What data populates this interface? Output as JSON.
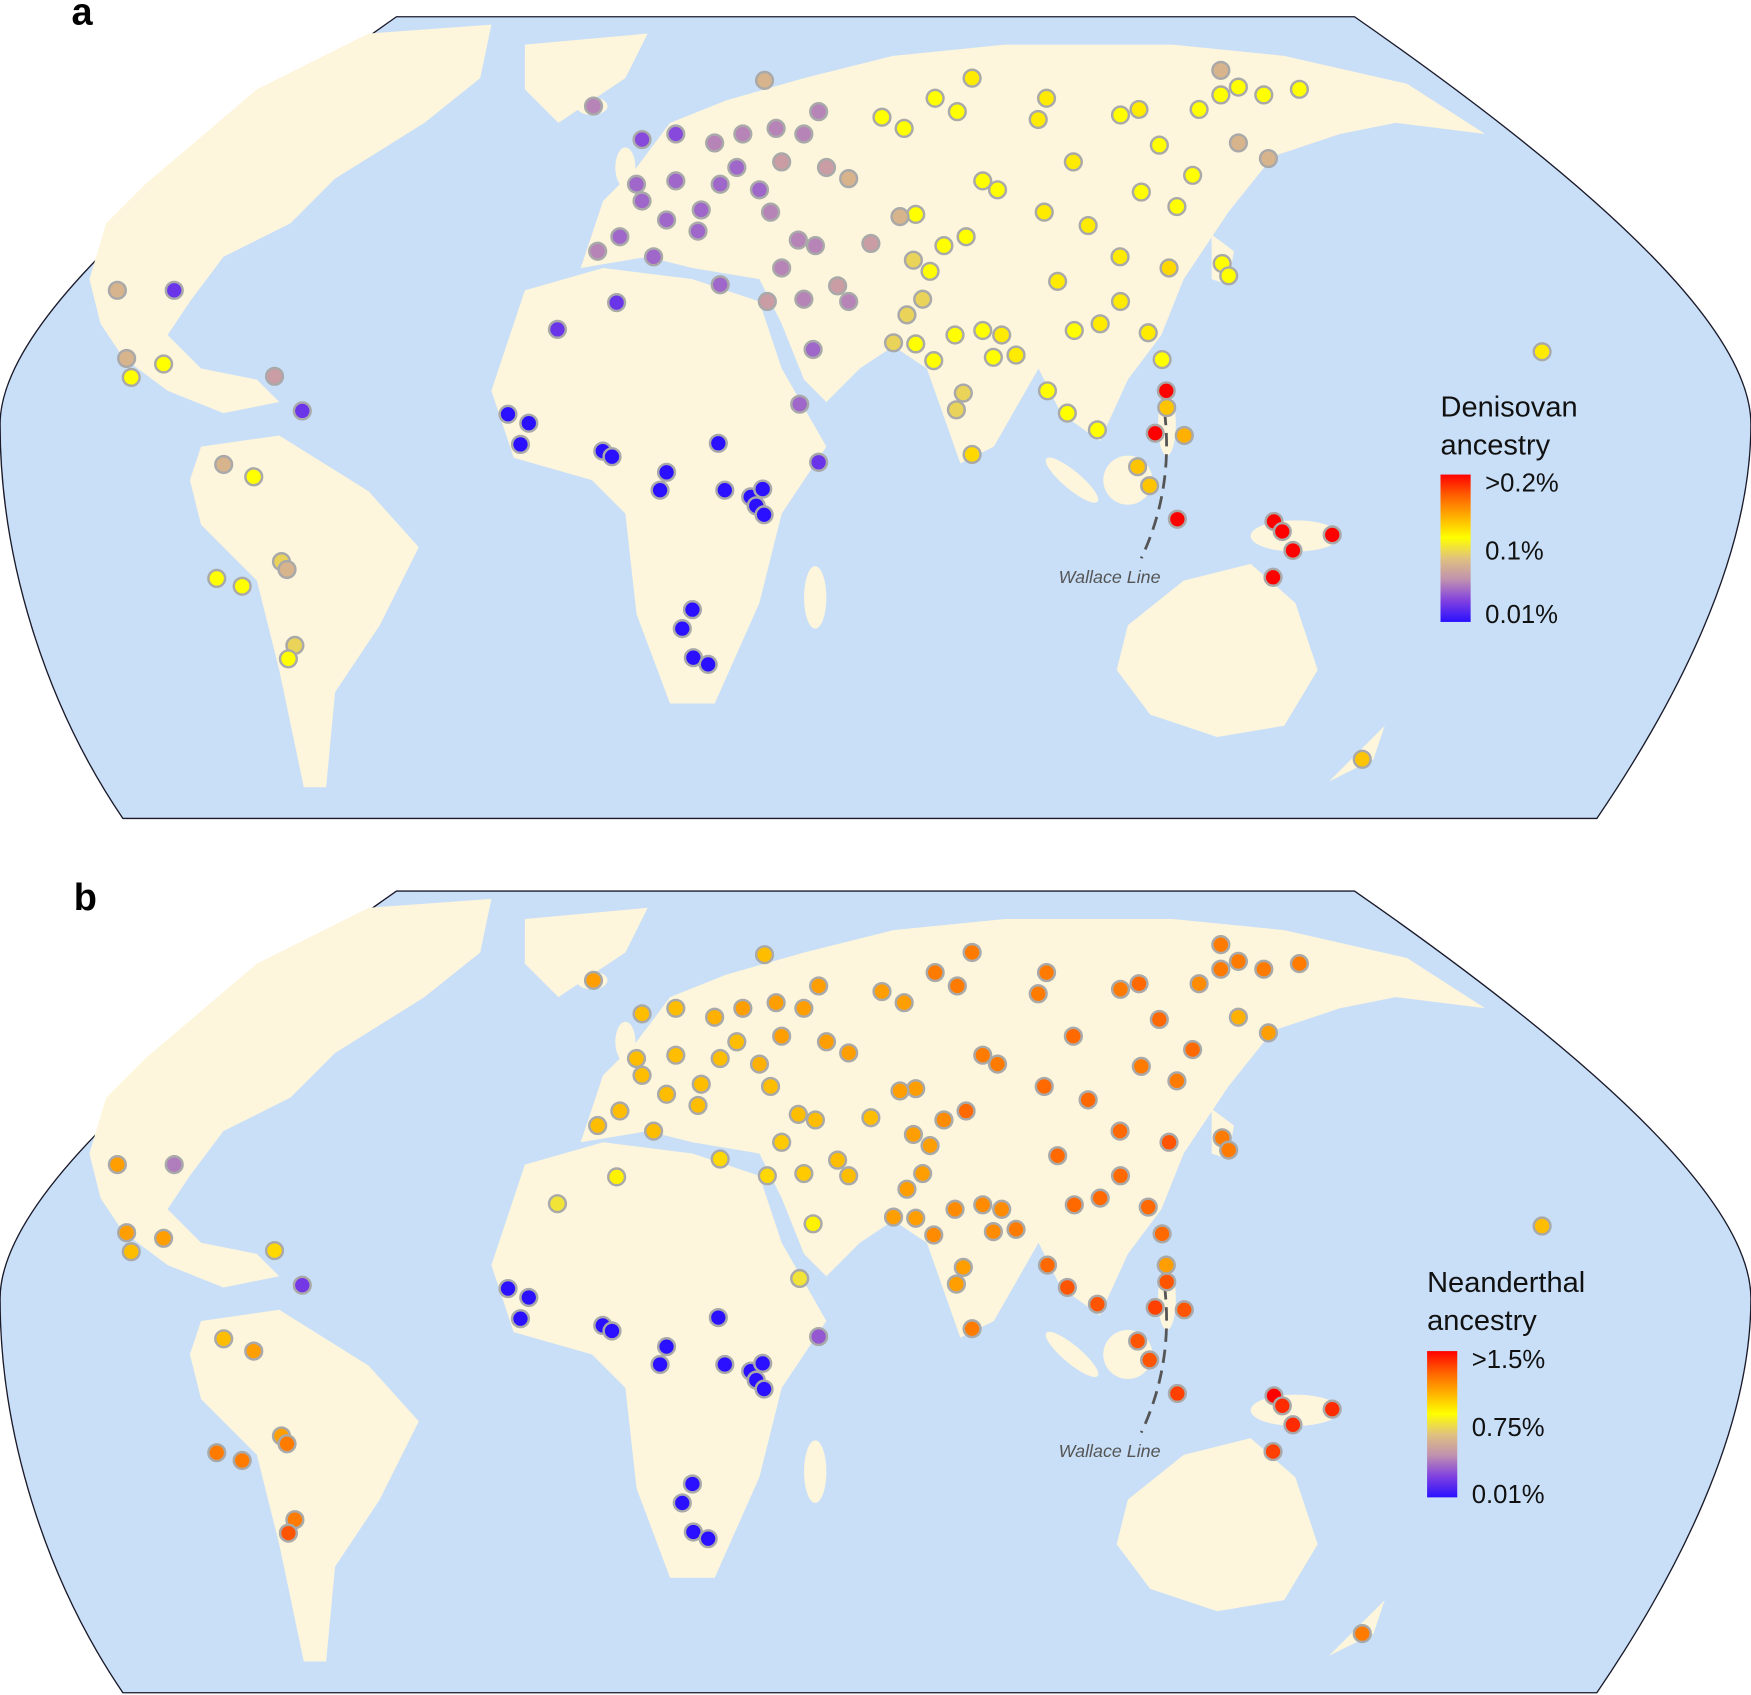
{
  "panels": [
    {
      "letter": "a",
      "legend_title_1": "Denisovan",
      "legend_title_2": "ancestry",
      "ticks": [
        ">0.2%",
        "0.1%",
        "0.01%"
      ],
      "value_key": "den",
      "scale": [
        0.01,
        0.1,
        0.2
      ],
      "wallace_label": "Wallace Line"
    },
    {
      "letter": "b",
      "legend_title_1": "Neanderthal",
      "legend_title_2": "ancestry",
      "ticks": [
        ">1.5%",
        "0.75%",
        "0.01%"
      ],
      "value_key": "nea",
      "scale": [
        0.01,
        0.75,
        1.5
      ],
      "wallace_label": "Wallace Line"
    }
  ],
  "colors": {
    "ocean": "#c9dff8",
    "land": "#fdf5dc",
    "scale_stops": [
      "#2a10ff",
      "#8040e0",
      "#c090b0",
      "#e0c080",
      "#ffff00",
      "#ffb000",
      "#ff6000",
      "#ff0000"
    ]
  },
  "map_data": {
    "type": "point-map",
    "fields": [
      "lon",
      "lat",
      "denisovan_pct",
      "neanderthal_pct"
    ],
    "points": [
      [
        -15.5,
        7.8,
        0.01,
        0.01
      ],
      [
        -11,
        6.2,
        0.01,
        0.01
      ],
      [
        -12.8,
        2.4,
        0.01,
        0.01
      ],
      [
        5,
        1.2,
        0.01,
        0.01
      ],
      [
        7,
        0.2,
        0.01,
        0.01
      ],
      [
        18.8,
        -2.6,
        0.01,
        0.01
      ],
      [
        17.4,
        -5.8,
        0.01,
        0.01
      ],
      [
        30,
        2.6,
        0.01,
        0.01
      ],
      [
        31.4,
        -5.8,
        0.01,
        0.01
      ],
      [
        37,
        -7,
        0.01,
        0.01
      ],
      [
        39.6,
        -5.6,
        0.01,
        0.01
      ],
      [
        38.2,
        -8.6,
        0.01,
        0.01
      ],
      [
        39.9,
        -10.2,
        0.01,
        0.01
      ],
      [
        24.4,
        -27.2,
        0.01,
        0.01
      ],
      [
        22.2,
        -30.6,
        0.01,
        0.01
      ],
      [
        24.6,
        -35.8,
        0.01,
        0.01
      ],
      [
        27.8,
        -37,
        0.01,
        0.01
      ],
      [
        51.7,
        -0.8,
        0.03,
        0.3
      ],
      [
        47.6,
        9.6,
        0.05,
        0.7
      ],
      [
        50.5,
        19.4,
        0.05,
        0.8
      ],
      [
        -4.8,
        23,
        0.03,
        0.7
      ],
      [
        8,
        27.8,
        0.03,
        0.8
      ],
      [
        3,
        63,
        0.06,
        1.1
      ],
      [
        -100,
        30,
        0.08,
        1.1
      ],
      [
        -87.7,
        30,
        0.03,
        0.4
      ],
      [
        -98,
        17.8,
        0.08,
        1.1
      ],
      [
        -97,
        14.4,
        0.1,
        1.0
      ],
      [
        -90,
        16.8,
        0.1,
        1.1
      ],
      [
        -66,
        14.6,
        0.07,
        0.9
      ],
      [
        -60,
        8.4,
        0.03,
        0.2
      ],
      [
        -77,
        -1.2,
        0.08,
        1.0
      ],
      [
        -70.5,
        -3.4,
        0.1,
        1.1
      ],
      [
        -78.5,
        -21.6,
        0.1,
        1.2
      ],
      [
        -73,
        -23,
        0.1,
        1.2
      ],
      [
        -64.5,
        -18.6,
        0.09,
        1.1
      ],
      [
        -63.3,
        -20,
        0.08,
        1.2
      ],
      [
        -61.6,
        -33.6,
        0.09,
        1.2
      ],
      [
        -63,
        -36,
        0.1,
        1.3
      ],
      [
        13.5,
        57,
        0.04,
        1.0
      ],
      [
        20.8,
        58,
        0.04,
        1.0
      ],
      [
        12.3,
        49,
        0.05,
        1.0
      ],
      [
        20.8,
        49.6,
        0.05,
        1.0
      ],
      [
        29.2,
        56.4,
        0.06,
        1.05
      ],
      [
        34,
        52,
        0.05,
        1.0
      ],
      [
        13.5,
        46,
        0.05,
        1.0
      ],
      [
        18.8,
        42.6,
        0.05,
        1.0
      ],
      [
        25.6,
        40.6,
        0.05,
        1.0
      ],
      [
        8.7,
        39.6,
        0.05,
        1.0
      ],
      [
        16,
        36,
        0.05,
        1.0
      ],
      [
        3.9,
        37,
        0.06,
        1.0
      ],
      [
        26.3,
        44.4,
        0.05,
        1.0
      ],
      [
        30.4,
        49,
        0.05,
        1.0
      ],
      [
        38.9,
        48,
        0.05,
        1.05
      ],
      [
        41.3,
        44,
        0.06,
        1.0
      ],
      [
        35.3,
        58,
        0.06,
        1.1
      ],
      [
        42.5,
        59,
        0.06,
        1.1
      ],
      [
        48.5,
        58,
        0.06,
        1.1
      ],
      [
        51.7,
        62,
        0.06,
        1.1
      ],
      [
        40,
        67.6,
        0.08,
        1.0
      ],
      [
        43.7,
        53,
        0.07,
        1.1
      ],
      [
        53.4,
        52,
        0.07,
        1.1
      ],
      [
        58.2,
        50,
        0.08,
        1.1
      ],
      [
        47.3,
        39,
        0.06,
        1.0
      ],
      [
        51,
        38,
        0.06,
        1.0
      ],
      [
        43.7,
        34,
        0.06,
        0.95
      ],
      [
        40.6,
        28,
        0.07,
        0.9
      ],
      [
        30.4,
        31,
        0.05,
        0.9
      ],
      [
        48.5,
        28.4,
        0.06,
        0.95
      ],
      [
        55.8,
        30.8,
        0.07,
        1.0
      ],
      [
        58.2,
        28,
        0.06,
        1.0
      ],
      [
        65.4,
        61,
        0.1,
        1.1
      ],
      [
        70.2,
        59,
        0.1,
        1.1
      ],
      [
        76.9,
        64.4,
        0.1,
        1.2
      ],
      [
        81.7,
        62,
        0.1,
        1.2
      ],
      [
        84.9,
        68,
        0.11,
        1.2
      ],
      [
        101,
        64.4,
        0.11,
        1.2
      ],
      [
        99.2,
        60.6,
        0.11,
        1.2
      ],
      [
        117,
        61.4,
        0.1,
        1.2
      ],
      [
        121,
        62.4,
        0.11,
        1.25
      ],
      [
        134,
        62.4,
        0.1,
        1.15
      ],
      [
        138.7,
        65,
        0.1,
        1.2
      ],
      [
        142.5,
        66.4,
        0.1,
        1.2
      ],
      [
        148,
        65,
        0.1,
        1.2
      ],
      [
        155.7,
        66,
        0.1,
        1.2
      ],
      [
        138.7,
        69.4,
        0.08,
        1.2
      ],
      [
        87.2,
        49.6,
        0.1,
        1.2
      ],
      [
        90.4,
        48,
        0.1,
        1.2
      ],
      [
        106.8,
        53,
        0.11,
        1.25
      ],
      [
        125.4,
        56,
        0.1,
        1.25
      ],
      [
        132.6,
        50.6,
        0.1,
        1.25
      ],
      [
        121.5,
        47.6,
        0.1,
        1.2
      ],
      [
        129.2,
        45,
        0.1,
        1.2
      ],
      [
        100.5,
        44,
        0.11,
        1.25
      ],
      [
        110,
        41.6,
        0.11,
        1.25
      ],
      [
        116.9,
        36,
        0.11,
        1.25
      ],
      [
        127.5,
        34,
        0.12,
        1.3
      ],
      [
        139,
        34.8,
        0.1,
        1.2
      ],
      [
        140.4,
        32.6,
        0.1,
        1.2
      ],
      [
        142.5,
        56.4,
        0.08,
        1.05
      ],
      [
        149,
        53.6,
        0.08,
        1.1
      ],
      [
        72.7,
        43.6,
        0.1,
        1.1
      ],
      [
        78.8,
        38,
        0.1,
        1.15
      ],
      [
        83.6,
        39.6,
        0.1,
        1.25
      ],
      [
        63,
        38.4,
        0.07,
        1.0
      ],
      [
        69.3,
        43.2,
        0.08,
        1.1
      ],
      [
        72.2,
        35.4,
        0.09,
        1.1
      ],
      [
        75.8,
        33.4,
        0.1,
        1.1
      ],
      [
        74.2,
        28.4,
        0.09,
        1.1
      ],
      [
        70.8,
        25.6,
        0.09,
        1.1
      ],
      [
        67.9,
        20.6,
        0.09,
        1.1
      ],
      [
        72.7,
        20.4,
        0.1,
        1.1
      ],
      [
        76.6,
        17.4,
        0.1,
        1.15
      ],
      [
        81.2,
        22,
        0.1,
        1.15
      ],
      [
        87.2,
        22.8,
        0.1,
        1.15
      ],
      [
        91.3,
        22,
        0.11,
        1.15
      ],
      [
        94.4,
        18.4,
        0.11,
        1.2
      ],
      [
        89.5,
        18,
        0.1,
        1.15
      ],
      [
        83,
        11.6,
        0.09,
        1.1
      ],
      [
        81.5,
        8.6,
        0.09,
        1.1
      ],
      [
        84.9,
        0.6,
        0.12,
        1.2
      ],
      [
        103.4,
        31.6,
        0.11,
        1.25
      ],
      [
        112.6,
        24,
        0.11,
        1.25
      ],
      [
        107,
        22.8,
        0.1,
        1.25
      ],
      [
        117,
        28,
        0.11,
        1.25
      ],
      [
        123,
        22.4,
        0.11,
        1.25
      ],
      [
        126,
        17.6,
        0.1,
        1.25
      ],
      [
        101.2,
        12,
        0.1,
        1.25
      ],
      [
        105.5,
        8,
        0.1,
        1.3
      ],
      [
        112,
        5,
        0.1,
        1.3
      ],
      [
        120.7,
        -1.6,
        0.13,
        1.3
      ],
      [
        123.3,
        -5,
        0.13,
        1.3
      ],
      [
        127,
        9,
        0.13,
        1.3
      ],
      [
        126.9,
        12,
        0.2,
        1.1
      ],
      [
        124.5,
        4.4,
        0.2,
        1.35
      ],
      [
        130.8,
        4,
        0.14,
        1.3
      ],
      [
        129.3,
        -11,
        0.2,
        1.35
      ],
      [
        150.2,
        -11.4,
        0.2,
        1.5
      ],
      [
        152,
        -13.2,
        0.2,
        1.4
      ],
      [
        154.3,
        -16.6,
        0.2,
        1.4
      ],
      [
        162.8,
        -13.8,
        0.2,
        1.4
      ],
      [
        150,
        -21.4,
        0.2,
        1.35
      ],
      [
        169.3,
        -54,
        0.13,
        1.2
      ],
      [
        208.2,
        19,
        0.11,
        1.0
      ]
    ]
  }
}
